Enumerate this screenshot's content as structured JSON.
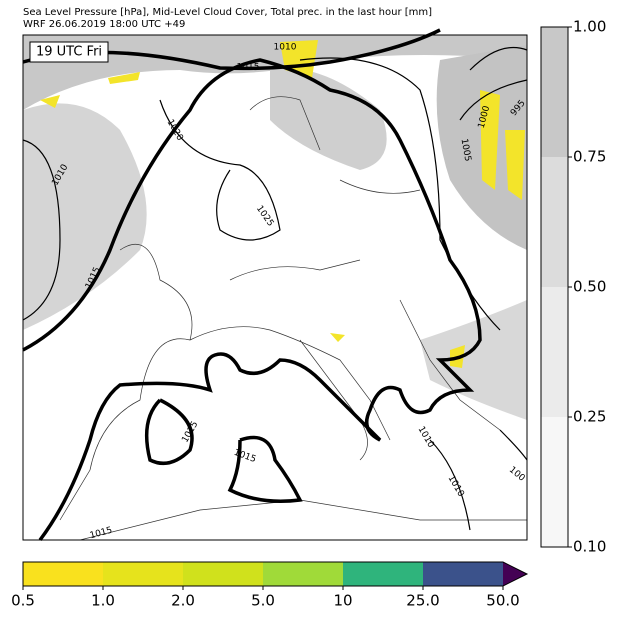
{
  "header": {
    "line1": "Sea Level Pressure [hPa], Mid-Level Cloud Cover, Total prec. in the last hour [mm]",
    "line2": "WRF 26.06.2019 18:00 UTC +49"
  },
  "map": {
    "time_label": "19 UTC Fri",
    "contour_labels": [
      "1010",
      "1015",
      "1020",
      "1010",
      "1025",
      "1015",
      "1000",
      "995",
      "1005",
      "1015",
      "1015",
      "1010",
      "1010",
      "100",
      "1015"
    ]
  },
  "cloud_colorbar": {
    "colors": [
      "#f7f7f7",
      "#ebebeb",
      "#dcdcdc",
      "#c8c8c8"
    ],
    "ticks": [
      {
        "value": 0.1,
        "label": "0.10"
      },
      {
        "value": 0.25,
        "label": "0.25"
      },
      {
        "value": 0.5,
        "label": "0.50"
      },
      {
        "value": 0.75,
        "label": "0.75"
      },
      {
        "value": 1,
        "label": "1.00"
      }
    ]
  },
  "precip_colorbar": {
    "colors": [
      "#f9e11e",
      "#e6e31c",
      "#d0e11c",
      "#a0da39",
      "#2fb47c",
      "#3b528b",
      "#440154"
    ],
    "ticks": [
      0.5,
      {
        "value": 1,
        "label": "1.0"
      },
      {
        "value": 2,
        "label": "2.0"
      },
      {
        "value": 5,
        "label": "5.0"
      },
      10.0,
      {
        "value": 25,
        "label": "25.0"
      },
      {
        "value": 50,
        "label": "50.0"
      }
    ]
  }
}
